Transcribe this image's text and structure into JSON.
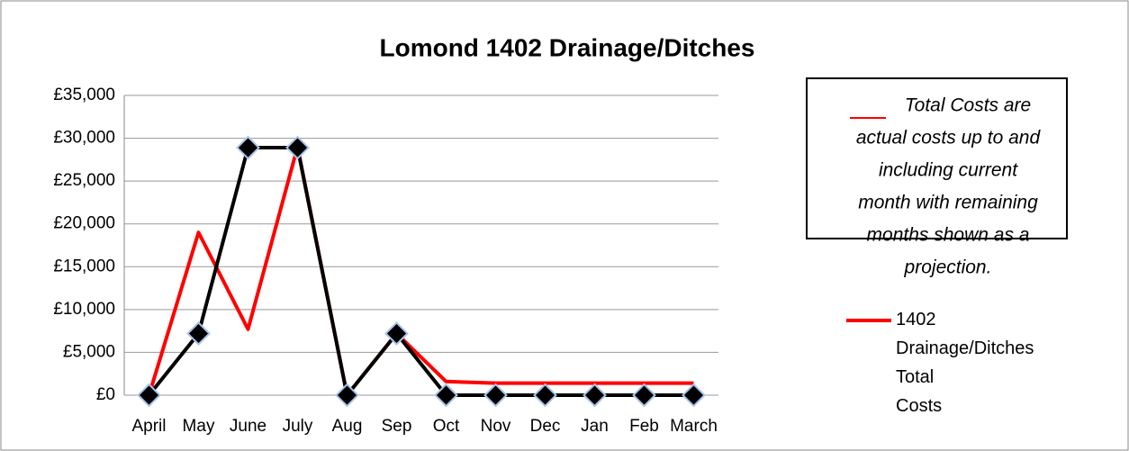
{
  "chart_data": {
    "type": "line",
    "title": "Lomond 1402 Drainage/Ditches",
    "categories": [
      "April",
      "May",
      "June",
      "July",
      "Aug",
      "Sep",
      "Oct",
      "Nov",
      "Dec",
      "Jan",
      "Feb",
      "March"
    ],
    "series": [
      {
        "name": "1402 Drainage/Ditches Total Costs",
        "color": "#ff0000",
        "values": [
          0,
          19000,
          7700,
          29000,
          0,
          7200,
          1600,
          1400,
          1400,
          1400,
          1400,
          1400
        ]
      },
      {
        "color": "#000000",
        "markers": true,
        "values": [
          0,
          7200,
          28900,
          28900,
          0,
          7200,
          0,
          0,
          0,
          0,
          0,
          0
        ]
      }
    ],
    "ylim": [
      0,
      35000
    ],
    "yticks": [
      {
        "value": 0,
        "label": "£0"
      },
      {
        "value": 5000,
        "label": "£5,000"
      },
      {
        "value": 10000,
        "label": "£10,000"
      },
      {
        "value": 15000,
        "label": "£15,000"
      },
      {
        "value": 20000,
        "label": "£20,000"
      },
      {
        "value": 25000,
        "label": "£25,000"
      },
      {
        "value": 30000,
        "label": "£30,000"
      },
      {
        "value": 35000,
        "label": "£35,000"
      }
    ],
    "grid": true,
    "annotation_lines": [
      "Total Costs are",
      "actual costs up to and",
      "including current",
      "month with remaining",
      "months shown as a",
      "projection."
    ]
  }
}
